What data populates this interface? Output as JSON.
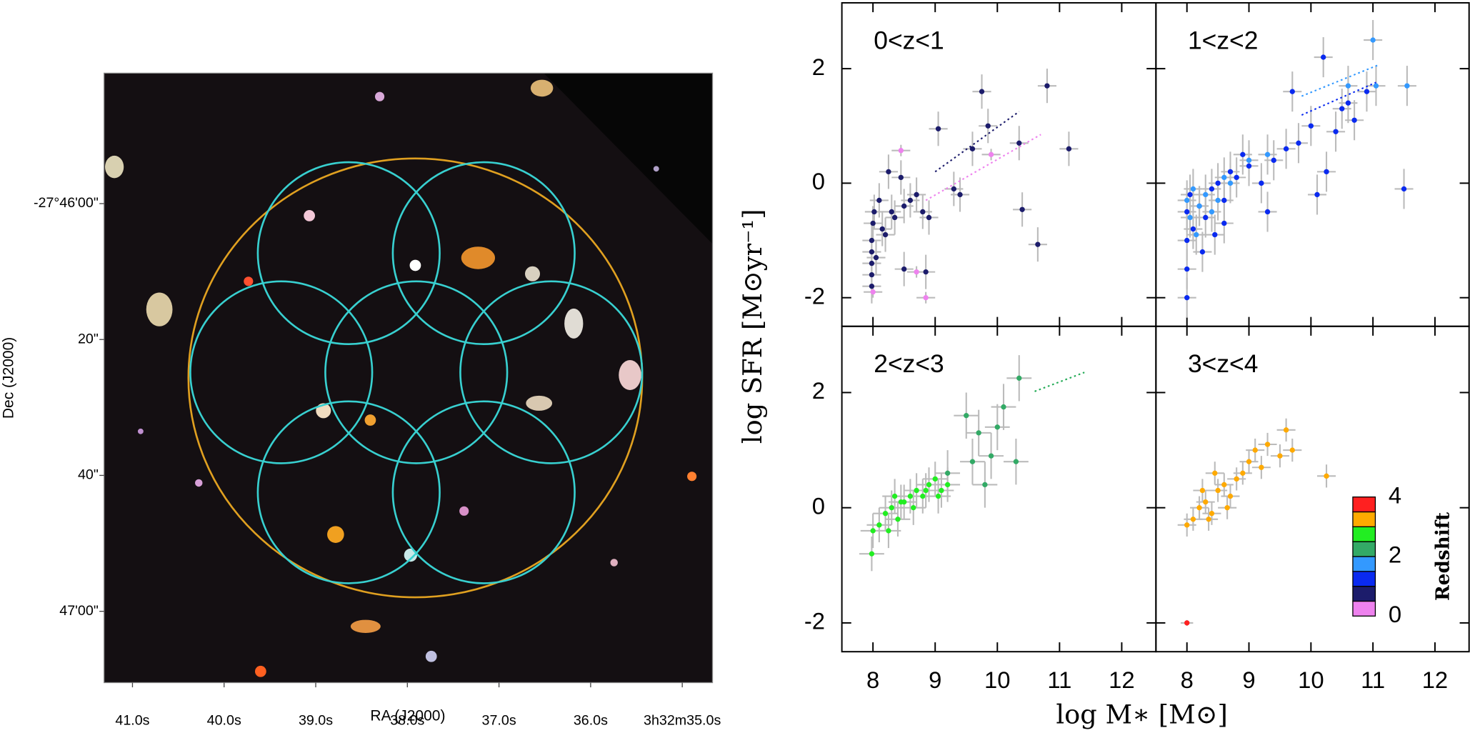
{
  "chart_data": [
    {
      "type": "image",
      "x_label": "RA (J2000)",
      "y_label": "Dec (J2000)",
      "xlim": [
        41.31,
        34.67
      ],
      "ylim": [
        -19.2,
        70.5
      ],
      "xticks": [
        {
          "value": 41,
          "label": "41.0s"
        },
        {
          "value": 40,
          "label": "40.0s"
        },
        {
          "value": 39,
          "label": "39.0s"
        },
        {
          "value": 38,
          "label": "38.0s"
        },
        {
          "value": 37,
          "label": "37.0s"
        },
        {
          "value": 36,
          "label": "36.0s"
        },
        {
          "value": 35,
          "label": "3h32m35.0s"
        }
      ],
      "yticks": [
        {
          "value": 0,
          "label": "-27°46'00\""
        },
        {
          "value": 20,
          "label": "20\""
        },
        {
          "value": 40,
          "label": "40\""
        },
        {
          "value": 60,
          "label": "47'00\""
        }
      ]
    },
    {
      "type": "scatter",
      "title": "0<z<1",
      "xlim": [
        7.5,
        12.55
      ],
      "ylim": [
        -2.5,
        3.15
      ],
      "xticks": [
        8,
        9,
        10,
        11,
        12
      ],
      "yticks": [
        -2,
        0,
        2
      ],
      "series": [
        {
          "color": "#1c1c6b",
          "xerr": 0.15,
          "yerr": 0.3,
          "x": [
            7.98,
            7.98,
            7.98,
            7.98,
            7.98,
            8.0,
            8.02,
            8.05,
            8.1,
            8.2,
            8.25,
            8.3,
            8.35,
            8.45,
            8.5,
            8.6,
            8.7,
            8.8,
            8.9,
            9.05,
            9.3,
            9.4,
            9.6,
            9.75,
            9.85,
            10.35,
            10.4,
            10.65,
            10.8,
            11.15,
            8.15,
            8.5,
            8.85
          ],
          "values": [
            -1.8,
            -1.6,
            -1.4,
            -1.2,
            -1.0,
            -0.7,
            -0.5,
            -1.3,
            -0.3,
            -0.9,
            0.2,
            -0.5,
            -0.6,
            0.1,
            -0.4,
            -0.3,
            -0.2,
            -0.5,
            -0.6,
            0.95,
            -0.1,
            -0.2,
            0.6,
            1.6,
            1.0,
            0.7,
            -0.46,
            -1.07,
            1.7,
            0.6,
            -0.8,
            -1.5,
            -1.55
          ]
        },
        {
          "color": "#ee82ee",
          "xerr": 0.15,
          "yerr": 0.1,
          "x": [
            8.45,
            9.9,
            8.7,
            8.85,
            8.0
          ],
          "values": [
            0.57,
            0.5,
            -1.55,
            -2.0,
            -1.9
          ]
        }
      ],
      "fits": [
        {
          "color": "#1c1c6b",
          "x": [
            9.0,
            10.35
          ],
          "values": [
            0.2,
            1.25
          ]
        },
        {
          "color": "#ee82ee",
          "x": [
            8.85,
            10.7
          ],
          "values": [
            -0.3,
            0.85
          ]
        }
      ]
    },
    {
      "type": "scatter",
      "title": "1<z<2",
      "xlim": [
        7.5,
        12.55
      ],
      "ylim": [
        -2.5,
        3.15
      ],
      "xticks": [
        8,
        9,
        10,
        11,
        12
      ],
      "yticks": [
        -2,
        0,
        2
      ],
      "series": [
        {
          "color": "#0a2af0",
          "xerr": 0.15,
          "yerr": 0.35,
          "x": [
            8.0,
            8.0,
            8.0,
            8.0,
            8.05,
            8.1,
            8.2,
            8.3,
            8.4,
            8.5,
            8.6,
            8.7,
            8.8,
            8.9,
            9.0,
            9.2,
            9.4,
            9.6,
            9.8,
            10.0,
            10.2,
            10.4,
            10.5,
            10.6,
            10.7,
            10.9,
            11.5,
            9.7,
            10.1,
            10.25,
            9.3,
            8.25,
            8.6,
            8.45
          ],
          "values": [
            -2.0,
            -1.5,
            -1.0,
            -0.5,
            -0.2,
            -0.8,
            -0.4,
            -0.6,
            -0.1,
            0.0,
            -0.3,
            0.2,
            0.1,
            0.5,
            0.3,
            0.0,
            0.4,
            0.6,
            0.7,
            1.0,
            2.2,
            0.9,
            1.3,
            1.4,
            1.1,
            1.6,
            -0.1,
            1.6,
            -0.2,
            0.2,
            -0.5,
            -1.2,
            -0.7,
            -0.9
          ]
        },
        {
          "color": "#3399ff",
          "xerr": 0.15,
          "yerr": 0.35,
          "x": [
            8.0,
            8.05,
            8.1,
            8.15,
            8.2,
            8.3,
            8.4,
            8.5,
            8.7,
            9.0,
            9.3,
            11.0,
            11.05,
            11.55,
            10.6,
            8.6
          ],
          "values": [
            -0.3,
            -0.6,
            -0.1,
            -0.9,
            -0.4,
            -0.2,
            -0.5,
            -0.3,
            0.0,
            0.4,
            0.5,
            2.5,
            1.7,
            1.7,
            1.7,
            0.1
          ]
        }
      ],
      "fits": [
        {
          "color": "#0a2af0",
          "x": [
            9.85,
            11.05
          ],
          "values": [
            1.19,
            1.76
          ]
        },
        {
          "color": "#3399ff",
          "x": [
            9.85,
            11.1
          ],
          "values": [
            1.52,
            2.07
          ]
        }
      ]
    },
    {
      "type": "scatter",
      "title": "2<z<3",
      "xlim": [
        7.5,
        12.55
      ],
      "ylim": [
        -2.5,
        3.15
      ],
      "xticks": [
        8,
        9,
        10,
        11,
        12
      ],
      "yticks": [
        -2,
        0,
        2
      ],
      "series": [
        {
          "color": "#22ee22",
          "xerr": 0.2,
          "yerr": 0.3,
          "x": [
            7.98,
            8.0,
            8.1,
            8.2,
            8.3,
            8.4,
            8.5,
            8.6,
            8.7,
            8.8,
            8.9,
            9.0,
            9.1,
            9.2,
            8.25,
            8.45,
            8.65,
            8.85,
            9.05,
            8.35
          ],
          "values": [
            -0.8,
            -0.4,
            -0.3,
            -0.1,
            0.0,
            -0.2,
            0.1,
            0.2,
            0.3,
            0.2,
            0.4,
            0.5,
            0.3,
            0.4,
            -0.4,
            0.1,
            0.0,
            0.3,
            0.2,
            0.2
          ]
        },
        {
          "color": "#33aa66",
          "xerr": 0.2,
          "yerr": 0.4,
          "x": [
            9.5,
            9.7,
            9.9,
            10.0,
            10.1,
            10.35,
            10.3,
            9.6,
            9.2,
            9.8
          ],
          "values": [
            1.6,
            1.3,
            0.9,
            1.4,
            1.75,
            2.25,
            0.8,
            0.8,
            0.6,
            0.4
          ]
        }
      ],
      "fits": [
        {
          "color": "#22aa55",
          "x": [
            10.6,
            11.4
          ],
          "values": [
            2.02,
            2.35
          ]
        }
      ]
    },
    {
      "type": "scatter",
      "title": "3<z<4",
      "xlim": [
        7.5,
        12.55
      ],
      "ylim": [
        -2.5,
        3.15
      ],
      "xticks": [
        8,
        9,
        10,
        11,
        12
      ],
      "yticks": [
        -2,
        0,
        2
      ],
      "series": [
        {
          "color": "#ffaa00",
          "xerr": 0.15,
          "yerr": 0.2,
          "x": [
            8.0,
            8.1,
            8.2,
            8.3,
            8.4,
            8.5,
            8.6,
            8.7,
            8.8,
            8.9,
            9.0,
            9.1,
            9.3,
            9.5,
            9.6,
            9.7,
            10.25,
            8.25,
            8.45,
            8.65,
            8.35,
            9.2
          ],
          "values": [
            -0.3,
            -0.2,
            0.0,
            0.1,
            -0.1,
            0.3,
            0.4,
            0.2,
            0.5,
            0.6,
            0.8,
            1.0,
            1.1,
            0.9,
            1.35,
            1.0,
            0.55,
            0.3,
            0.6,
            0.0,
            -0.2,
            0.7
          ]
        },
        {
          "color": "#ff2020",
          "xerr": 0.1,
          "yerr": 0.05,
          "x": [
            8.0
          ],
          "values": [
            -2.0
          ]
        }
      ],
      "fits": [],
      "colorbar": {
        "label": "Redshift",
        "lim": [
          0,
          4
        ],
        "ticks": [
          0,
          2,
          4
        ],
        "colors": [
          "#ee82ee",
          "#1c1c6b",
          "#0a2af0",
          "#3399ff",
          "#33aa66",
          "#22ee22",
          "#ffaa00",
          "#ff2020"
        ]
      }
    }
  ],
  "x_label": "log M∗ [M⊙]",
  "y_label": "log SFR [M⊙yr⁻¹]"
}
